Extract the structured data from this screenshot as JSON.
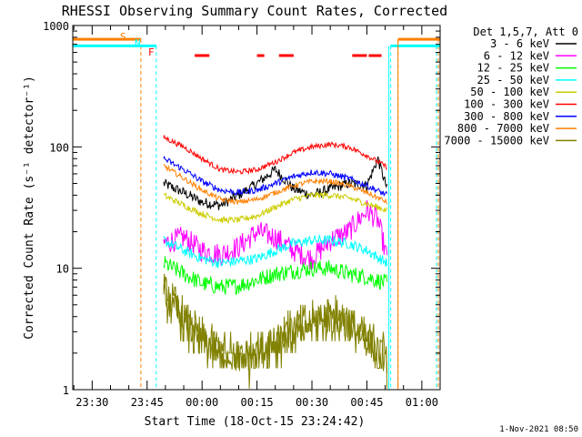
{
  "chart_data": {
    "type": "line",
    "title": "RHESSI Observing Summary Count Rates, Corrected",
    "xlabel": "Start Time (18-Oct-15 23:24:42)",
    "ylabel": "Corrected Count Rate (s⁻¹ detector⁻¹)",
    "yscale": "log",
    "ylim": [
      1,
      1000
    ],
    "xlim_minutes_after_2330": [
      -5.3,
      95
    ],
    "x_ticks": [
      "23:30",
      "23:45",
      "00:00",
      "00:15",
      "00:30",
      "00:45",
      "01:00"
    ],
    "y_ticks": [
      "1",
      "10",
      "100",
      "1000"
    ],
    "legend_title": "Det 1,5,7, Att 0",
    "legend_placement": "right",
    "timestamp": "1-Nov-2021 08:50",
    "flag_labels": {
      "saa": "S",
      "night": "N",
      "flare": "F"
    },
    "series": [
      {
        "name": "3 - 6 keV",
        "color": "#000000",
        "t_range": [
          19.5,
          80.5
        ],
        "t": [
          19.5,
          25,
          30,
          35,
          40,
          45,
          50,
          55,
          60,
          65,
          70,
          75,
          78,
          80.5
        ],
        "y": [
          50,
          42,
          35,
          33,
          40,
          50,
          65,
          45,
          40,
          45,
          50,
          48,
          80,
          45
        ]
      },
      {
        "name": "6 - 12 keV",
        "color": "#ff00ff",
        "t_range": [
          19.5,
          80.5
        ],
        "t": [
          19.5,
          25,
          30,
          35,
          40,
          45,
          50,
          55,
          60,
          65,
          70,
          75,
          78,
          80.5
        ],
        "y": [
          16,
          18,
          14,
          13,
          15,
          20,
          18,
          14,
          12,
          17,
          20,
          30,
          25,
          12
        ]
      },
      {
        "name": "12 - 25 keV",
        "color": "#00ff00",
        "t_range": [
          19.5,
          80.5
        ],
        "t": [
          19.5,
          25,
          30,
          35,
          40,
          45,
          50,
          55,
          60,
          65,
          70,
          75,
          80.5
        ],
        "y": [
          11,
          9,
          7.5,
          7,
          7.2,
          8,
          9,
          9.5,
          10,
          10,
          9,
          8.5,
          7.5
        ]
      },
      {
        "name": "25 - 50 keV",
        "color": "#00ffff",
        "t_range": [
          19.5,
          80.5
        ],
        "t": [
          19.5,
          25,
          30,
          35,
          40,
          45,
          50,
          55,
          60,
          65,
          70,
          75,
          80.5
        ],
        "y": [
          17,
          14,
          12,
          11,
          11.5,
          12,
          14,
          16,
          17,
          17,
          16,
          14,
          11
        ]
      },
      {
        "name": "50 - 100 keV",
        "color": "#cccc00",
        "t_range": [
          19.5,
          80.5
        ],
        "t": [
          19.5,
          25,
          30,
          35,
          40,
          45,
          50,
          55,
          60,
          65,
          70,
          75,
          80.5
        ],
        "y": [
          40,
          33,
          28,
          25,
          25,
          27,
          32,
          37,
          40,
          40,
          38,
          34,
          30
        ]
      },
      {
        "name": "100 - 300 keV",
        "color": "#ff0000",
        "t_range": [
          19.5,
          80.5
        ],
        "t": [
          19.5,
          25,
          30,
          35,
          40,
          45,
          50,
          55,
          60,
          65,
          70,
          75,
          80.5
        ],
        "y": [
          120,
          100,
          80,
          65,
          62,
          65,
          75,
          90,
          100,
          105,
          100,
          85,
          68
        ]
      },
      {
        "name": "300 - 800 keV",
        "color": "#0000ff",
        "t_range": [
          19.5,
          80.5
        ],
        "t": [
          19.5,
          25,
          30,
          35,
          40,
          45,
          50,
          55,
          60,
          65,
          70,
          75,
          80.5
        ],
        "y": [
          80,
          65,
          52,
          44,
          42,
          44,
          50,
          57,
          62,
          60,
          55,
          48,
          40
        ]
      },
      {
        "name": "800 - 7000 keV",
        "color": "#ff8000",
        "t_range": [
          19.5,
          80.5
        ],
        "t": [
          19.5,
          25,
          30,
          35,
          40,
          45,
          50,
          55,
          60,
          65,
          70,
          75,
          80.5
        ],
        "y": [
          70,
          55,
          44,
          37,
          35,
          37,
          42,
          48,
          52,
          52,
          48,
          42,
          35
        ]
      },
      {
        "name": "7000 - 15000 keV",
        "color": "#808000",
        "t_range": [
          19.5,
          80.5
        ],
        "t": [
          19.5,
          23,
          27,
          30,
          35,
          40,
          45,
          50,
          55,
          60,
          65,
          70,
          75,
          80.5
        ],
        "y": [
          6,
          4.5,
          3,
          2.5,
          2,
          1.8,
          2,
          2.5,
          3,
          3.5,
          4,
          3.5,
          2.5,
          1.8
        ]
      }
    ],
    "flags": {
      "saa": {
        "color": "#ff8000",
        "level": 770,
        "intervals": [
          [
            -5.3,
            13.3
          ],
          [
            83.5,
            95
          ]
        ],
        "edges": [
          13.3,
          83.5,
          94.5
        ]
      },
      "night": {
        "color": "#00ffff",
        "level": 680,
        "intervals": [
          [
            -5.3,
            17.5
          ],
          [
            81.5,
            95
          ]
        ],
        "edges": [
          -5.3,
          17.5,
          81.5,
          94
        ]
      },
      "flare": {
        "color": "#ff0000",
        "level": 565,
        "intervals": [
          [
            28,
            32
          ],
          [
            45,
            47
          ],
          [
            51,
            55
          ],
          [
            71,
            75
          ],
          [
            75.5,
            79
          ]
        ]
      }
    }
  }
}
